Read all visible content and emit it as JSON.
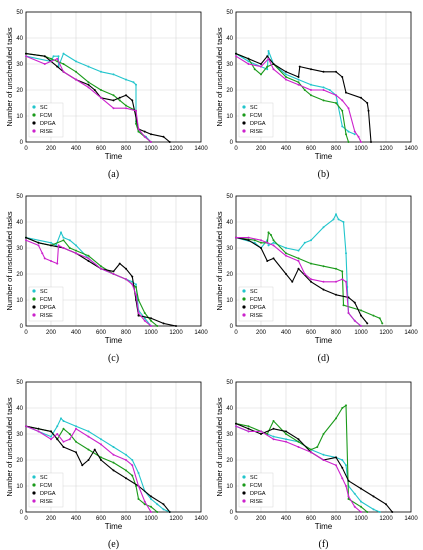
{
  "figure": {
    "colors": {
      "SC": "#22c5cc",
      "FCM": "#1a9a1a",
      "DPGA": "#000000",
      "RISE": "#cc22cc"
    }
  },
  "chart_data": [
    {
      "type": "line",
      "panel_label": "(a)",
      "xlabel": "Time",
      "ylabel": "Number of unscheduled tasks",
      "xlim": [
        0,
        1400
      ],
      "ylim": [
        0,
        50
      ],
      "xticks": [
        0,
        200,
        400,
        600,
        800,
        1000,
        1200,
        1400
      ],
      "yticks": [
        0,
        10,
        20,
        30,
        40,
        50
      ],
      "grid": true,
      "legend_position": "bottom-left",
      "series": [
        {
          "name": "SC",
          "x": [
            0,
            200,
            220,
            260,
            260,
            300,
            400,
            500,
            600,
            700,
            800,
            860,
            880,
            880,
            900,
            960,
            1000
          ],
          "y": [
            33,
            31,
            33,
            33,
            29,
            34,
            31,
            29,
            27,
            26,
            24,
            23,
            22,
            8,
            4,
            2,
            0
          ]
        },
        {
          "name": "FCM",
          "x": [
            0,
            150,
            200,
            250,
            300,
            400,
            500,
            600,
            700,
            750,
            800,
            880,
            880,
            900,
            950,
            1000
          ],
          "y": [
            34,
            33,
            32,
            31,
            30,
            27,
            23,
            20,
            18,
            16,
            14,
            12,
            7,
            4,
            2,
            0
          ]
        },
        {
          "name": "DPGA",
          "x": [
            0,
            150,
            250,
            300,
            400,
            500,
            550,
            600,
            700,
            750,
            800,
            850,
            900,
            950,
            1000,
            1100,
            1150
          ],
          "y": [
            34,
            33,
            29,
            27,
            24,
            22,
            20,
            17,
            16,
            17,
            18,
            16,
            5,
            4,
            3,
            2,
            0
          ]
        },
        {
          "name": "RISE",
          "x": [
            0,
            150,
            250,
            300,
            400,
            500,
            600,
            700,
            800,
            880,
            900,
            950,
            1000
          ],
          "y": [
            33,
            30,
            32,
            27,
            24,
            21,
            17,
            13,
            13,
            12,
            5,
            2,
            0
          ]
        }
      ]
    },
    {
      "type": "line",
      "panel_label": "(b)",
      "xlabel": "Time",
      "ylabel": "Number of unscheduled tasks",
      "xlim": [
        0,
        1400
      ],
      "ylim": [
        0,
        50
      ],
      "xticks": [
        0,
        200,
        400,
        600,
        800,
        1000,
        1200,
        1400
      ],
      "yticks": [
        0,
        10,
        20,
        30,
        40,
        50
      ],
      "grid": true,
      "legend_position": "bottom-left",
      "series": [
        {
          "name": "SC",
          "x": [
            0,
            100,
            200,
            250,
            260,
            300,
            400,
            500,
            600,
            700,
            750,
            800,
            850,
            900,
            950
          ],
          "y": [
            34,
            31,
            29,
            28,
            35,
            30,
            26,
            24,
            22,
            21,
            20,
            18,
            6,
            4,
            3
          ]
        },
        {
          "name": "FCM",
          "x": [
            0,
            100,
            150,
            200,
            250,
            300,
            400,
            500,
            550,
            600,
            700,
            800,
            850,
            880,
            900
          ],
          "y": [
            34,
            32,
            28,
            26,
            29,
            30,
            25,
            23,
            20,
            18,
            16,
            15,
            12,
            3,
            0
          ]
        },
        {
          "name": "DPGA",
          "x": [
            0,
            100,
            200,
            250,
            300,
            400,
            500,
            510,
            600,
            700,
            800,
            850,
            880,
            1000,
            1050,
            1060,
            1080
          ],
          "y": [
            34,
            32,
            30,
            33,
            30,
            27,
            25,
            29,
            28,
            27,
            27,
            25,
            19,
            17,
            15,
            12,
            0
          ]
        },
        {
          "name": "RISE",
          "x": [
            0,
            100,
            200,
            260,
            300,
            400,
            500,
            600,
            700,
            800,
            850,
            900,
            950,
            980,
            1000
          ],
          "y": [
            33,
            30,
            29,
            32,
            28,
            24,
            22,
            20,
            20,
            18,
            16,
            13,
            4,
            2,
            0
          ]
        }
      ]
    },
    {
      "type": "line",
      "panel_label": "(c)",
      "xlabel": "Time",
      "ylabel": "Number of unscheduled tasks",
      "xlim": [
        0,
        1400
      ],
      "ylim": [
        0,
        50
      ],
      "xticks": [
        0,
        200,
        400,
        600,
        800,
        1000,
        1200,
        1400
      ],
      "yticks": [
        0,
        10,
        20,
        30,
        40,
        50
      ],
      "grid": true,
      "legend_position": "bottom-left",
      "series": [
        {
          "name": "SC",
          "x": [
            0,
            200,
            240,
            280,
            300,
            350,
            400,
            500,
            600,
            700,
            800,
            850,
            880,
            900,
            950,
            1000
          ],
          "y": [
            34,
            32,
            31,
            36,
            34,
            33,
            31,
            26,
            22,
            20,
            18,
            17,
            16,
            6,
            3,
            0
          ]
        },
        {
          "name": "FCM",
          "x": [
            0,
            100,
            200,
            300,
            350,
            400,
            500,
            600,
            700,
            800,
            880,
            900,
            950,
            1000,
            1050
          ],
          "y": [
            34,
            32,
            31,
            33,
            30,
            29,
            27,
            23,
            20,
            18,
            15,
            10,
            5,
            2,
            0
          ]
        },
        {
          "name": "DPGA",
          "x": [
            0,
            100,
            200,
            300,
            400,
            500,
            600,
            700,
            750,
            800,
            850,
            880,
            900,
            1000,
            1100,
            1200
          ],
          "y": [
            34,
            32,
            31,
            30,
            28,
            25,
            22,
            21,
            24,
            22,
            19,
            10,
            4,
            3,
            1,
            0
          ]
        },
        {
          "name": "RISE",
          "x": [
            0,
            100,
            130,
            150,
            200,
            250,
            260,
            300,
            400,
            500,
            600,
            700,
            800,
            850,
            880,
            900,
            950,
            1000
          ],
          "y": [
            33,
            31,
            28,
            26,
            25,
            24,
            31,
            30,
            28,
            26,
            22,
            20,
            18,
            16,
            12,
            5,
            2,
            0
          ]
        }
      ]
    },
    {
      "type": "line",
      "panel_label": "(d)",
      "xlabel": "Time",
      "ylabel": "Number of unscheduled tasks",
      "xlim": [
        0,
        1400
      ],
      "ylim": [
        0,
        50
      ],
      "xticks": [
        0,
        200,
        400,
        600,
        800,
        1000,
        1200,
        1400
      ],
      "yticks": [
        0,
        10,
        20,
        30,
        40,
        50
      ],
      "grid": true,
      "legend_position": "bottom-left",
      "series": [
        {
          "name": "SC",
          "x": [
            0,
            150,
            200,
            250,
            260,
            300,
            400,
            500,
            550,
            600,
            700,
            780,
            800,
            820,
            860,
            880,
            890,
            900,
            950,
            1000
          ],
          "y": [
            34,
            32,
            30,
            33,
            31,
            32,
            30,
            29,
            32,
            33,
            38,
            41,
            43,
            41,
            40,
            28,
            15,
            5,
            2,
            0
          ]
        },
        {
          "name": "FCM",
          "x": [
            0,
            150,
            200,
            250,
            260,
            280,
            300,
            400,
            500,
            600,
            700,
            800,
            850,
            860,
            1000,
            1100,
            1150,
            1170
          ],
          "y": [
            34,
            33,
            32,
            32,
            36,
            35,
            33,
            28,
            26,
            24,
            23,
            22,
            21,
            8,
            6,
            4,
            3,
            1
          ]
        },
        {
          "name": "DPGA",
          "x": [
            0,
            100,
            200,
            250,
            300,
            400,
            450,
            500,
            600,
            700,
            800,
            900,
            950,
            1000,
            1050
          ],
          "y": [
            34,
            33,
            30,
            25,
            26,
            20,
            17,
            22,
            17,
            14,
            12,
            11,
            9,
            4,
            1
          ]
        },
        {
          "name": "RISE",
          "x": [
            0,
            100,
            200,
            250,
            300,
            400,
            500,
            550,
            600,
            700,
            800,
            850,
            880,
            900,
            950,
            1000
          ],
          "y": [
            34,
            34,
            33,
            32,
            31,
            27,
            25,
            20,
            18,
            17,
            17,
            18,
            17,
            5,
            2,
            0
          ]
        }
      ]
    },
    {
      "type": "line",
      "panel_label": "(e)",
      "xlabel": "Time",
      "ylabel": "Number of unscheduled tasks",
      "xlim": [
        0,
        1400
      ],
      "ylim": [
        0,
        50
      ],
      "xticks": [
        0,
        200,
        400,
        600,
        800,
        1000,
        1200,
        1400
      ],
      "yticks": [
        0,
        10,
        20,
        30,
        40,
        50
      ],
      "grid": true,
      "legend_position": "bottom-left",
      "series": [
        {
          "name": "SC",
          "x": [
            0,
            100,
            200,
            250,
            280,
            300,
            400,
            500,
            600,
            700,
            800,
            850,
            900,
            950,
            1000,
            1050,
            1100,
            1150
          ],
          "y": [
            33,
            31,
            29,
            33,
            36,
            35,
            33,
            31,
            28,
            25,
            22,
            20,
            15,
            8,
            5,
            3,
            1,
            0
          ]
        },
        {
          "name": "FCM",
          "x": [
            0,
            100,
            200,
            250,
            300,
            350,
            400,
            500,
            600,
            700,
            800,
            850,
            880,
            900,
            950,
            1000,
            1050
          ],
          "y": [
            33,
            32,
            31,
            28,
            32,
            30,
            27,
            24,
            21,
            19,
            16,
            14,
            10,
            5,
            3,
            2,
            0
          ]
        },
        {
          "name": "DPGA",
          "x": [
            0,
            100,
            200,
            250,
            300,
            400,
            450,
            500,
            550,
            600,
            700,
            800,
            900,
            1000,
            1100,
            1150
          ],
          "y": [
            33,
            32,
            31,
            28,
            25,
            23,
            18,
            20,
            24,
            20,
            16,
            13,
            10,
            6,
            3,
            0
          ]
        },
        {
          "name": "RISE",
          "x": [
            0,
            100,
            200,
            250,
            300,
            350,
            400,
            500,
            600,
            700,
            800,
            850,
            900,
            950,
            1000
          ],
          "y": [
            33,
            31,
            28,
            30,
            27,
            28,
            32,
            29,
            26,
            22,
            20,
            18,
            10,
            4,
            0
          ]
        }
      ]
    },
    {
      "type": "line",
      "panel_label": "(f)",
      "xlabel": "Time",
      "ylabel": "Number of unscheduled tasks",
      "xlim": [
        0,
        1400
      ],
      "ylim": [
        0,
        50
      ],
      "xticks": [
        0,
        200,
        400,
        600,
        800,
        1000,
        1200,
        1400
      ],
      "yticks": [
        0,
        10,
        20,
        30,
        40,
        50
      ],
      "grid": true,
      "legend_position": "bottom-left",
      "series": [
        {
          "name": "SC",
          "x": [
            0,
            100,
            200,
            300,
            400,
            500,
            600,
            700,
            800,
            850,
            880,
            900,
            950,
            1000,
            1100,
            1150
          ],
          "y": [
            33,
            31,
            31,
            29,
            28,
            27,
            24,
            22,
            21,
            20,
            18,
            10,
            7,
            4,
            1,
            0
          ]
        },
        {
          "name": "FCM",
          "x": [
            0,
            100,
            200,
            250,
            300,
            400,
            500,
            600,
            650,
            700,
            800,
            850,
            880,
            900,
            1000,
            1050
          ],
          "y": [
            34,
            33,
            31,
            30,
            35,
            30,
            27,
            24,
            25,
            30,
            36,
            40,
            41,
            5,
            2,
            0
          ]
        },
        {
          "name": "DPGA",
          "x": [
            0,
            100,
            200,
            300,
            400,
            500,
            600,
            700,
            800,
            850,
            900,
            1000,
            1100,
            1200,
            1250
          ],
          "y": [
            34,
            32,
            30,
            32,
            31,
            28,
            23,
            20,
            21,
            17,
            12,
            9,
            6,
            3,
            0
          ]
        },
        {
          "name": "RISE",
          "x": [
            0,
            100,
            200,
            300,
            400,
            500,
            600,
            700,
            800,
            850,
            880,
            900,
            950,
            1000
          ],
          "y": [
            33,
            31,
            31,
            28,
            27,
            25,
            23,
            20,
            18,
            13,
            10,
            6,
            2,
            0
          ]
        }
      ]
    }
  ]
}
